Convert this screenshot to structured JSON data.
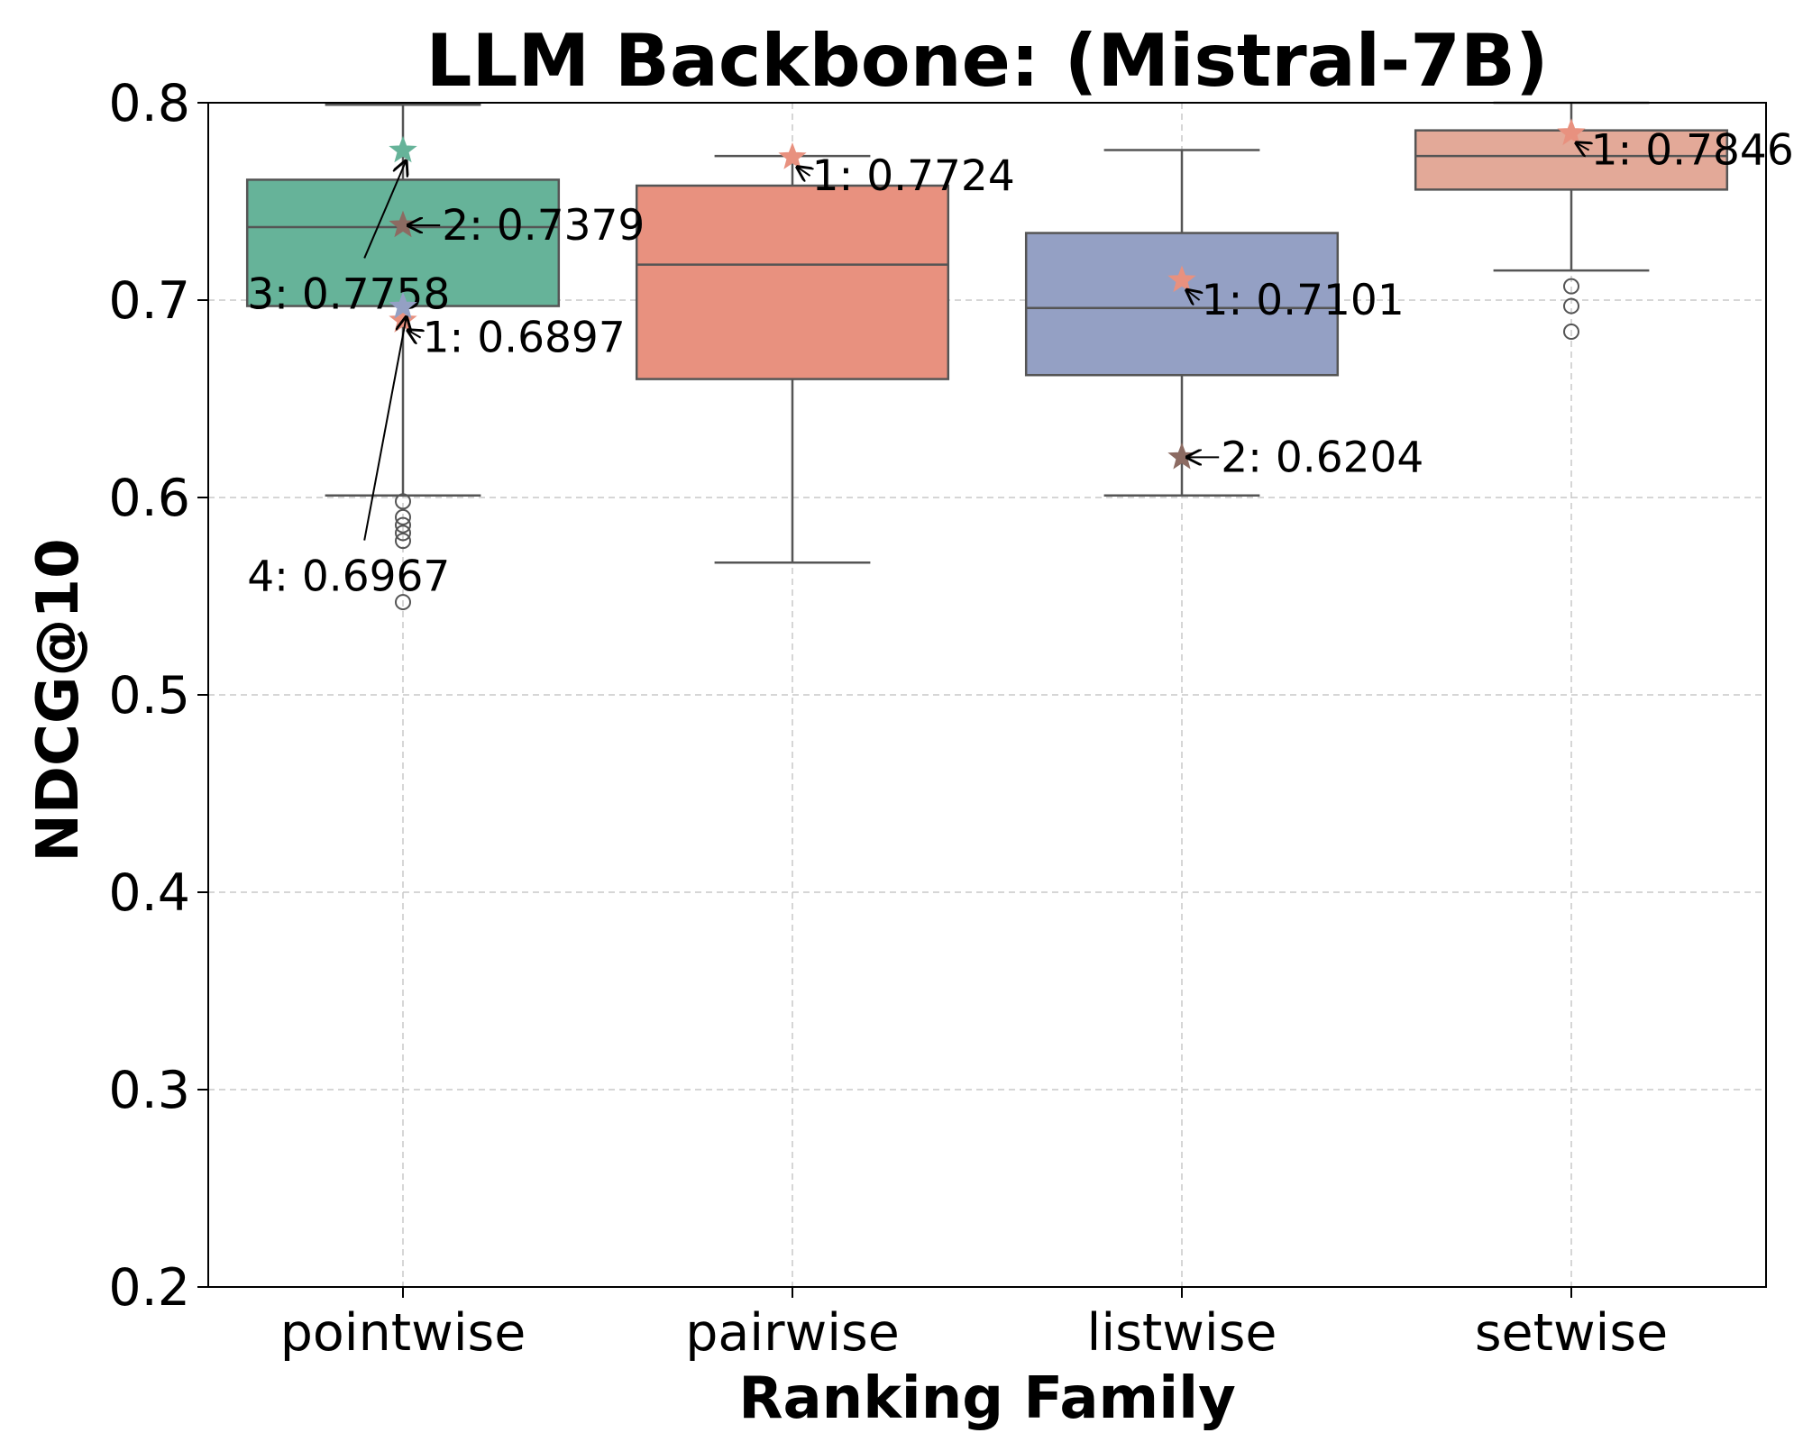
{
  "chart_data": {
    "type": "box",
    "title": "LLM Backbone: (Mistral-7B)",
    "xlabel": "Ranking Family",
    "ylabel": "NDCG@10",
    "ylim": [
      0.2,
      0.8
    ],
    "yticks": [
      0.2,
      0.3,
      0.4,
      0.5,
      0.6,
      0.7,
      0.8
    ],
    "ytick_labels": [
      "0.2",
      "0.3",
      "0.4",
      "0.5",
      "0.6",
      "0.7",
      "0.8"
    ],
    "grid": true,
    "categories": [
      "pointwise",
      "pairwise",
      "listwise",
      "setwise"
    ],
    "boxes": [
      {
        "category": "pointwise",
        "color": "#66b399",
        "whisker_low": 0.601,
        "q1": 0.697,
        "median": 0.737,
        "q3": 0.761,
        "whisker_high": 0.799,
        "fliers": [
          0.598,
          0.59,
          0.586,
          0.582,
          0.578,
          0.547
        ]
      },
      {
        "category": "pairwise",
        "color": "#e8917f",
        "whisker_low": 0.567,
        "q1": 0.66,
        "median": 0.718,
        "q3": 0.758,
        "whisker_high": 0.773,
        "fliers": []
      },
      {
        "category": "listwise",
        "color": "#94a0c4",
        "whisker_low": 0.601,
        "q1": 0.662,
        "median": 0.696,
        "q3": 0.734,
        "whisker_high": 0.776,
        "fliers": []
      },
      {
        "category": "setwise",
        "color": "#e3a998",
        "whisker_low": 0.715,
        "q1": 0.756,
        "median": 0.773,
        "q3": 0.786,
        "whisker_high": 0.8,
        "fliers": [
          0.707,
          0.697,
          0.684
        ]
      }
    ],
    "annotations": [
      {
        "category": "pointwise",
        "value": 0.7379,
        "label": "2: 0.7379",
        "marker_color": "#8c6b62",
        "text_dx": 0.1,
        "text_y": 0.7379,
        "text_side": "right"
      },
      {
        "category": "pointwise",
        "value": 0.7758,
        "label": "3: 0.7758",
        "marker_color": "#66b399",
        "text_dx": -0.4,
        "text_y": 0.703,
        "text_side": "right"
      },
      {
        "category": "pointwise",
        "value": 0.6897,
        "label": "1: 0.6897",
        "marker_color": "#e8917f",
        "text_dx": 0.05,
        "text_y": 0.681,
        "text_side": "right"
      },
      {
        "category": "pointwise",
        "value": 0.6967,
        "label": "4: 0.6967",
        "marker_color": "#94a0c4",
        "text_dx": -0.4,
        "text_y": 0.56,
        "text_side": "right"
      },
      {
        "category": "pairwise",
        "value": 0.7724,
        "label": "1: 0.7724",
        "marker_color": "#e8917f",
        "text_dx": 0.05,
        "text_y": 0.763,
        "text_side": "right"
      },
      {
        "category": "listwise",
        "value": 0.7101,
        "label": "1: 0.7101",
        "marker_color": "#e8917f",
        "text_dx": 0.05,
        "text_y": 0.7,
        "text_side": "right"
      },
      {
        "category": "listwise",
        "value": 0.6204,
        "label": "2: 0.6204",
        "marker_color": "#8c6b62",
        "text_dx": 0.1,
        "text_y": 0.6204,
        "text_side": "right"
      },
      {
        "category": "setwise",
        "value": 0.7846,
        "label": "1: 0.7846",
        "marker_color": "#e8917f",
        "text_dx": 0.05,
        "text_y": 0.776,
        "text_side": "right"
      }
    ]
  }
}
